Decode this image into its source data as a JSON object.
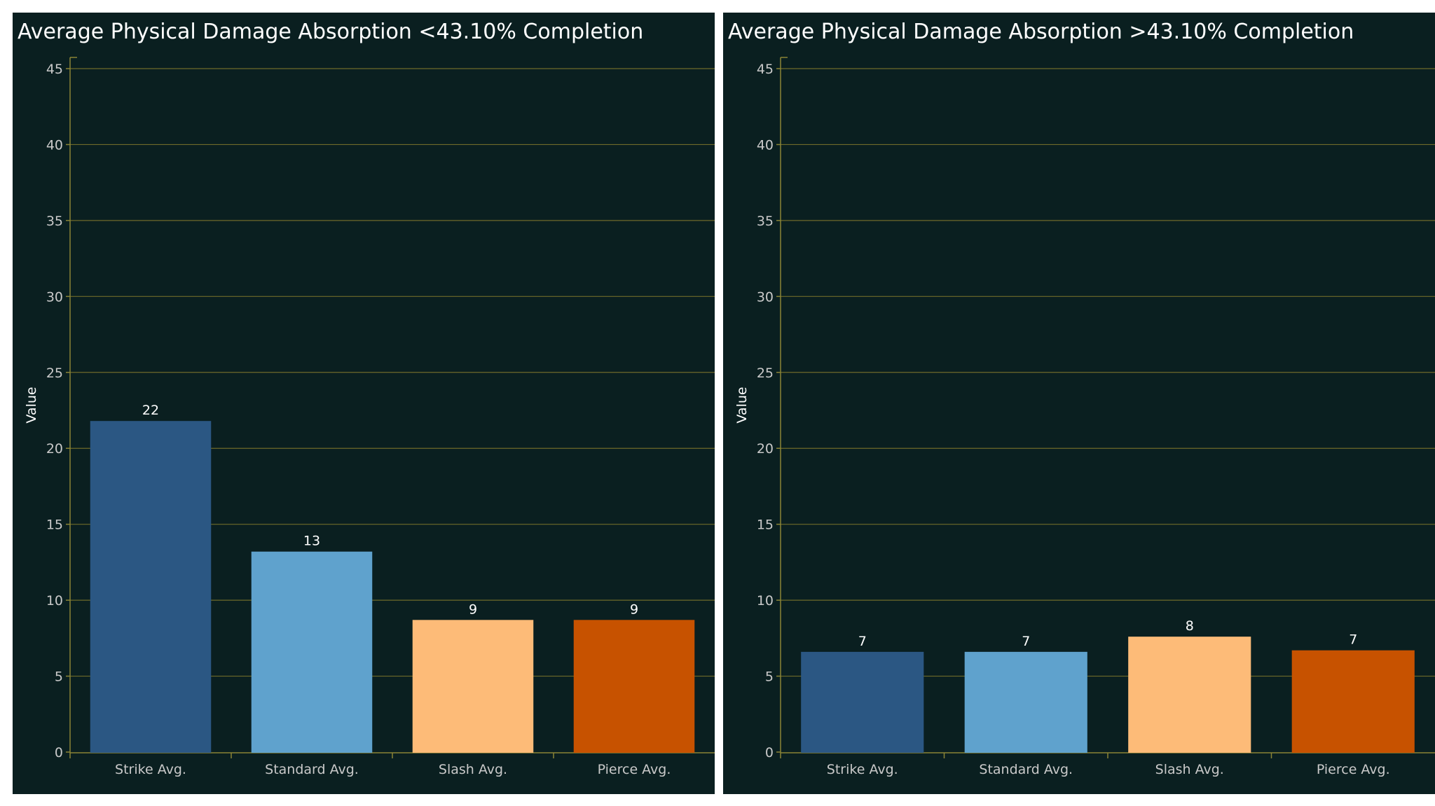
{
  "chart_data": [
    {
      "type": "bar",
      "title": "Average Physical Damage Absorption <43.10% Completion",
      "ylabel": "Value",
      "xlabel": "",
      "ylim": [
        0,
        45
      ],
      "yticks": [
        0,
        5,
        10,
        15,
        20,
        25,
        30,
        35,
        40,
        45
      ],
      "grid": true,
      "categories": [
        "Strike Avg.",
        "Standard Avg.",
        "Slash Avg.",
        "Pierce Avg."
      ],
      "values": [
        21.8,
        13.2,
        8.7,
        8.7
      ],
      "value_labels": [
        "22",
        "13",
        "9",
        "9"
      ],
      "colors": [
        "#2b5783",
        "#5fa2cd",
        "#fdbb78",
        "#c75200"
      ]
    },
    {
      "type": "bar",
      "title": "Average Physical Damage Absorption >43.10% Completion",
      "ylabel": "Value",
      "xlabel": "",
      "ylim": [
        0,
        45
      ],
      "yticks": [
        0,
        5,
        10,
        15,
        20,
        25,
        30,
        35,
        40,
        45
      ],
      "grid": true,
      "categories": [
        "Strike Avg.",
        "Standard Avg.",
        "Slash Avg.",
        "Pierce Avg."
      ],
      "values": [
        6.6,
        6.6,
        7.6,
        6.7
      ],
      "value_labels": [
        "7",
        "7",
        "8",
        "7"
      ],
      "colors": [
        "#2b5783",
        "#5fa2cd",
        "#fdbb78",
        "#c75200"
      ]
    }
  ]
}
